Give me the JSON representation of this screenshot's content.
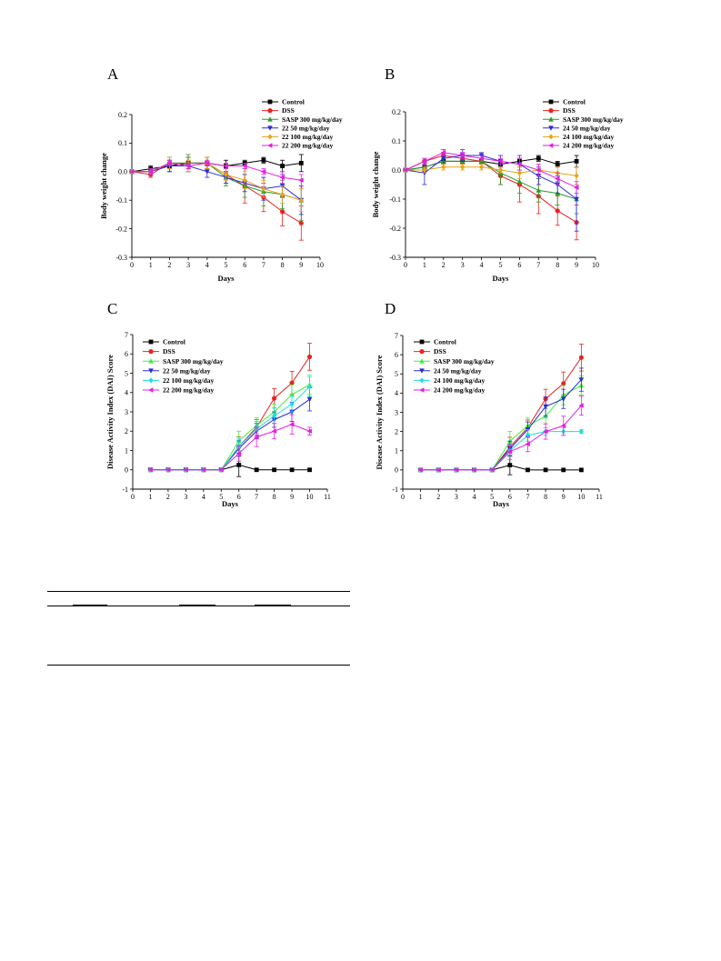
{
  "colors": {
    "Control": "#000000",
    "DSS": "#e8231f",
    "SASP": "#2a9d2a",
    "d50": "#2b2bd6",
    "d100": "#e8a317",
    "d200": "#e21fe2",
    "cyan": "#19e0e0",
    "green_light": "#3df03d"
  },
  "chart_data": [
    {
      "panel": "A",
      "type": "line",
      "xlabel": "Days",
      "ylabel": "Body weight change",
      "xlim": [
        0,
        10
      ],
      "ylim": [
        -0.3,
        0.2
      ],
      "xticks": [
        "0",
        "1",
        "2",
        "3",
        "4",
        "5",
        "6",
        "7",
        "8",
        "9",
        "10"
      ],
      "yticks": [
        "-0.3",
        "-0.2",
        "-0.1",
        "0.0",
        "0.1",
        "0.2"
      ],
      "x": [
        0,
        1,
        2,
        3,
        4,
        5,
        6,
        7,
        8,
        9
      ],
      "series": [
        {
          "name": "Control",
          "color": "Control",
          "marker": "square",
          "values": [
            0.0,
            0.01,
            0.02,
            0.03,
            0.03,
            0.02,
            0.03,
            0.04,
            0.02,
            0.03
          ],
          "err": [
            0.0,
            0.01,
            0.02,
            0.02,
            0.02,
            0.02,
            0.01,
            0.01,
            0.02,
            0.03
          ]
        },
        {
          "name": "DSS",
          "color": "DSS",
          "marker": "circle",
          "values": [
            0.0,
            -0.01,
            0.03,
            0.03,
            0.03,
            -0.01,
            -0.05,
            -0.09,
            -0.14,
            -0.18
          ],
          "err": [
            0.0,
            0.01,
            0.02,
            0.02,
            0.02,
            0.03,
            0.06,
            0.05,
            0.05,
            0.06
          ]
        },
        {
          "name": "SASP 300 mg/kg/day",
          "color": "SASP",
          "marker": "triangle-up",
          "values": [
            0.0,
            0.0,
            0.03,
            0.03,
            0.03,
            -0.02,
            -0.05,
            -0.07,
            -0.08,
            -0.1
          ],
          "err": [
            0.0,
            0.01,
            0.02,
            0.03,
            0.02,
            0.03,
            0.04,
            0.05,
            0.05,
            0.07
          ]
        },
        {
          "name": "22 50 mg/kg/day",
          "color": "d50",
          "marker": "triangle-down",
          "values": [
            0.0,
            0.0,
            0.02,
            0.02,
            0.0,
            -0.02,
            -0.04,
            -0.06,
            -0.05,
            -0.1
          ],
          "err": [
            0.0,
            0.01,
            0.02,
            0.02,
            0.02,
            0.02,
            0.03,
            0.04,
            0.04,
            0.05
          ]
        },
        {
          "name": "22 100 mg/kg/day",
          "color": "d100",
          "marker": "diamond",
          "values": [
            0.0,
            0.0,
            0.03,
            0.02,
            0.03,
            -0.01,
            -0.03,
            -0.06,
            -0.08,
            -0.1
          ],
          "err": [
            0.0,
            0.01,
            0.02,
            0.02,
            0.02,
            0.02,
            0.03,
            0.03,
            0.03,
            0.04
          ]
        },
        {
          "name": "22 200 mg/kg/day",
          "color": "d200",
          "marker": "triangle-left",
          "values": [
            0.0,
            0.0,
            0.03,
            0.02,
            0.03,
            0.02,
            0.02,
            0.0,
            -0.02,
            -0.03
          ],
          "err": [
            0.0,
            0.01,
            0.01,
            0.01,
            0.01,
            0.01,
            0.01,
            0.01,
            0.02,
            0.02
          ]
        }
      ]
    },
    {
      "panel": "B",
      "type": "line",
      "xlabel": "Days",
      "ylabel": "Body weight change",
      "xlim": [
        0,
        10
      ],
      "ylim": [
        -0.3,
        0.2
      ],
      "xticks": [
        "0",
        "1",
        "2",
        "3",
        "4",
        "5",
        "6",
        "7",
        "8",
        "9",
        "10"
      ],
      "yticks": [
        "-0.3",
        "-0.2",
        "-0.1",
        "0.0",
        "0.1",
        "0.2"
      ],
      "x": [
        0,
        1,
        2,
        3,
        4,
        5,
        6,
        7,
        8,
        9
      ],
      "series": [
        {
          "name": "Control",
          "color": "Control",
          "marker": "square",
          "values": [
            0.0,
            0.01,
            0.03,
            0.03,
            0.03,
            0.02,
            0.03,
            0.04,
            0.02,
            0.03
          ],
          "err": [
            0.0,
            0.01,
            0.01,
            0.01,
            0.01,
            0.01,
            0.01,
            0.01,
            0.01,
            0.02
          ]
        },
        {
          "name": "DSS",
          "color": "DSS",
          "marker": "circle",
          "values": [
            0.0,
            0.03,
            0.05,
            0.04,
            0.03,
            -0.02,
            -0.05,
            -0.09,
            -0.14,
            -0.18
          ],
          "err": [
            0.0,
            0.01,
            0.02,
            0.02,
            0.02,
            0.03,
            0.06,
            0.06,
            0.05,
            0.06
          ]
        },
        {
          "name": "SASP 300 mg/kg/day",
          "color": "SASP",
          "marker": "triangle-up",
          "values": [
            0.0,
            0.01,
            0.03,
            0.03,
            0.03,
            -0.01,
            -0.04,
            -0.07,
            -0.08,
            -0.1
          ],
          "err": [
            0.0,
            0.01,
            0.02,
            0.02,
            0.02,
            0.04,
            0.04,
            0.04,
            0.04,
            0.05
          ]
        },
        {
          "name": "24 50 mg/kg/day",
          "color": "d50",
          "marker": "triangle-down",
          "values": [
            0.0,
            -0.01,
            0.04,
            0.05,
            0.05,
            0.03,
            0.02,
            -0.02,
            -0.05,
            -0.1
          ],
          "err": [
            0.0,
            0.04,
            0.02,
            0.02,
            0.01,
            0.02,
            0.03,
            0.03,
            0.03,
            0.11
          ]
        },
        {
          "name": "24 100 mg/kg/day",
          "color": "d100",
          "marker": "diamond",
          "values": [
            0.0,
            0.0,
            0.01,
            0.01,
            0.01,
            0.0,
            -0.01,
            0.0,
            -0.01,
            -0.02
          ],
          "err": [
            0.0,
            0.01,
            0.01,
            0.01,
            0.01,
            0.01,
            0.02,
            0.02,
            0.02,
            0.03
          ]
        },
        {
          "name": "24 200 mg/kg/day",
          "color": "d200",
          "marker": "triangle-left",
          "values": [
            0.0,
            0.03,
            0.06,
            0.05,
            0.04,
            0.03,
            0.02,
            0.0,
            -0.03,
            -0.06
          ],
          "err": [
            0.0,
            0.01,
            0.01,
            0.01,
            0.01,
            0.01,
            0.02,
            0.02,
            0.02,
            0.02
          ]
        }
      ]
    },
    {
      "panel": "C",
      "type": "line",
      "xlabel": "Days",
      "ylabel": "Disease Activity Index (DAI) Score",
      "xlim": [
        0,
        11
      ],
      "ylim": [
        -1,
        7
      ],
      "xticks": [
        "0",
        "1",
        "2",
        "3",
        "4",
        "5",
        "6",
        "7",
        "8",
        "9",
        "10",
        "11"
      ],
      "yticks": [
        "-1",
        "0",
        "1",
        "2",
        "3",
        "4",
        "5",
        "6",
        "7"
      ],
      "x": [
        1,
        2,
        3,
        4,
        5,
        6,
        7,
        8,
        9,
        10
      ],
      "series": [
        {
          "name": "Control",
          "color": "Control",
          "marker": "square",
          "values": [
            0,
            0,
            0,
            0,
            0,
            0.25,
            0,
            0,
            0,
            0
          ],
          "err": [
            0,
            0,
            0,
            0,
            0,
            0.6,
            0,
            0,
            0,
            0
          ]
        },
        {
          "name": "DSS",
          "color": "DSS",
          "marker": "circle",
          "values": [
            0,
            0,
            0,
            0,
            0,
            1.2,
            2.2,
            3.7,
            4.5,
            5.85
          ],
          "err": [
            0,
            0,
            0,
            0,
            0,
            0.5,
            0.4,
            0.5,
            0.6,
            0.7
          ]
        },
        {
          "name": "SASP  300 mg/kg/day",
          "color": "green_light",
          "marker": "triangle-up",
          "values": [
            0,
            0,
            0,
            0,
            0,
            1.5,
            2.3,
            3.0,
            3.9,
            4.4
          ],
          "err": [
            0,
            0,
            0,
            0,
            0,
            0.5,
            0.4,
            0.4,
            0.5,
            0.5
          ]
        },
        {
          "name": "22  50 mg/kg/day",
          "color": "d50",
          "marker": "triangle-down",
          "values": [
            0,
            0,
            0,
            0,
            0,
            1.1,
            2.0,
            2.6,
            3.0,
            3.65
          ],
          "err": [
            0,
            0,
            0,
            0,
            0,
            0.4,
            0.4,
            0.4,
            0.5,
            0.6
          ]
        },
        {
          "name": "22 100 mg/kg/day",
          "color": "cyan",
          "marker": "diamond",
          "values": [
            0,
            0,
            0,
            0,
            0,
            1.2,
            2.1,
            2.8,
            3.4,
            4.3
          ],
          "err": [
            0,
            0,
            0,
            0,
            0,
            0.4,
            0.4,
            0.4,
            0.4,
            0.5
          ]
        },
        {
          "name": "22 200 mg/kg/day",
          "color": "d200",
          "marker": "triangle-left",
          "values": [
            0,
            0,
            0,
            0,
            0,
            0.85,
            1.7,
            2.0,
            2.35,
            2.0
          ],
          "err": [
            0,
            0,
            0,
            0,
            0,
            0.4,
            0.5,
            0.4,
            0.5,
            0.2
          ]
        }
      ]
    },
    {
      "panel": "D",
      "type": "line",
      "xlabel": "Days",
      "ylabel": "Disease Activity Index (DAI) Score",
      "xlim": [
        0,
        11
      ],
      "ylim": [
        -1,
        7
      ],
      "xticks": [
        "0",
        "1",
        "2",
        "3",
        "4",
        "5",
        "6",
        "7",
        "8",
        "9",
        "10",
        "11"
      ],
      "yticks": [
        "-1",
        "0",
        "1",
        "2",
        "3",
        "4",
        "5",
        "6",
        "7"
      ],
      "x": [
        1,
        2,
        3,
        4,
        5,
        6,
        7,
        8,
        9,
        10
      ],
      "series": [
        {
          "name": "Control",
          "color": "Control",
          "marker": "square",
          "values": [
            0,
            0,
            0,
            0,
            0,
            0.25,
            0,
            0,
            0,
            0
          ],
          "err": [
            0,
            0,
            0,
            0,
            0,
            0.5,
            0,
            0,
            0,
            0
          ]
        },
        {
          "name": "DSS",
          "color": "DSS",
          "marker": "circle",
          "values": [
            0,
            0,
            0,
            0,
            0,
            1.2,
            2.2,
            3.7,
            4.5,
            5.85
          ],
          "err": [
            0,
            0,
            0,
            0,
            0,
            0.5,
            0.4,
            0.5,
            0.6,
            0.7
          ]
        },
        {
          "name": "SASP  300 mg/kg/day",
          "color": "green_light",
          "marker": "triangle-up",
          "values": [
            0,
            0,
            0,
            0,
            0,
            1.5,
            2.3,
            2.8,
            3.9,
            4.4
          ],
          "err": [
            0,
            0,
            0,
            0,
            0,
            0.5,
            0.4,
            0.4,
            0.5,
            0.5
          ]
        },
        {
          "name": "24  50 mg/kg/day",
          "color": "d50",
          "marker": "triangle-down",
          "values": [
            0,
            0,
            0,
            0,
            0,
            1.1,
            2.1,
            3.3,
            3.7,
            4.7
          ],
          "err": [
            0,
            0,
            0,
            0,
            0,
            0.4,
            0.4,
            0.5,
            0.5,
            0.6
          ]
        },
        {
          "name": "24 100 mg/kg/day",
          "color": "cyan",
          "marker": "diamond",
          "values": [
            0,
            0,
            0,
            0,
            0,
            1.0,
            1.8,
            2.0,
            2.0,
            2.0
          ],
          "err": [
            0,
            0,
            0,
            0,
            0,
            0.3,
            0.3,
            0.2,
            0.2,
            0.1
          ]
        },
        {
          "name": "24 200 mg/kg/day",
          "color": "d200",
          "marker": "triangle-left",
          "values": [
            0,
            0,
            0,
            0,
            0,
            0.95,
            1.35,
            2.0,
            2.3,
            3.35
          ],
          "err": [
            0,
            0,
            0,
            0,
            0,
            0.4,
            0.4,
            0.4,
            0.5,
            0.5
          ]
        }
      ]
    }
  ]
}
